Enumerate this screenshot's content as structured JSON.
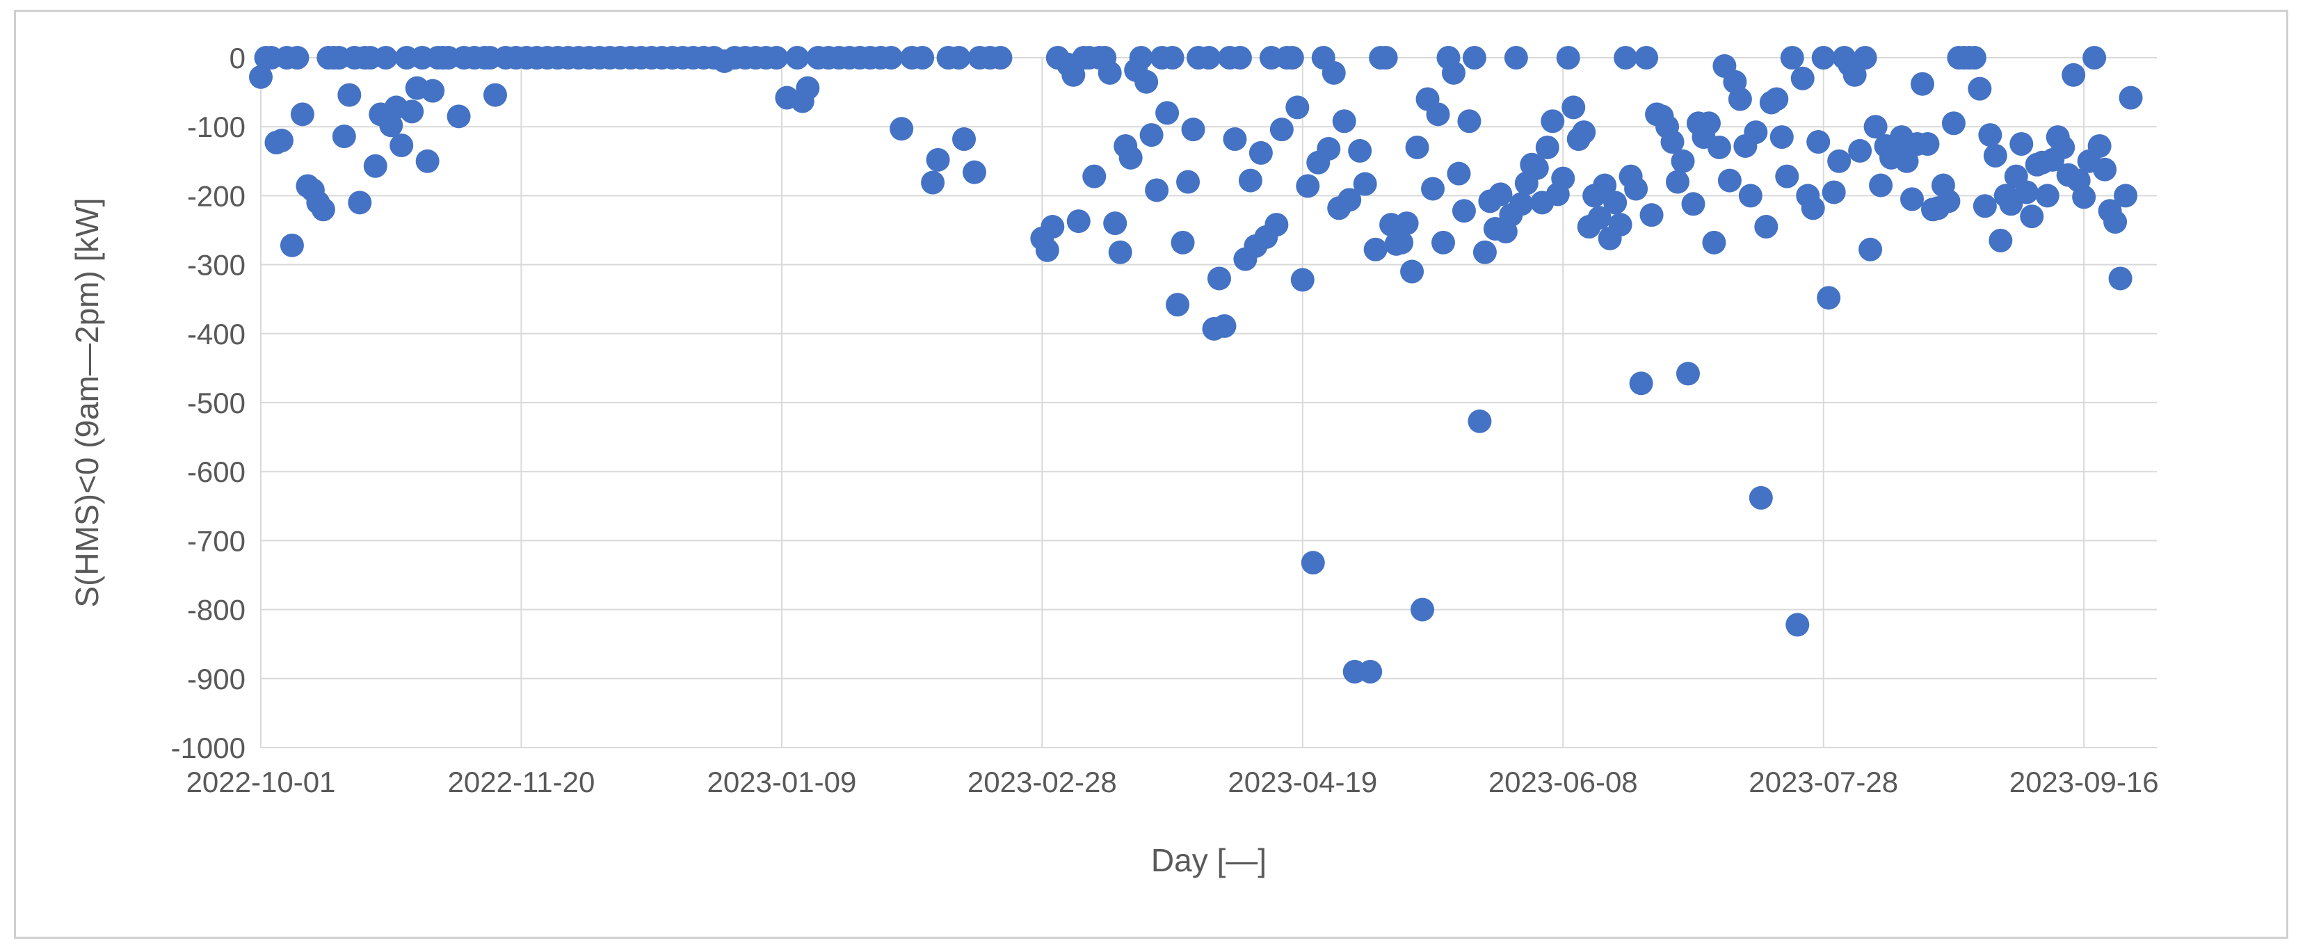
{
  "chart_data": {
    "type": "scatter",
    "title": "",
    "xlabel": "Day [—]",
    "ylabel": "S(HMS)<0 (9am—2pm) [kW]",
    "xlim": [
      "2022-10-01",
      "2023-09-30"
    ],
    "ylim": [
      -1000,
      0
    ],
    "y_ticks": [
      0,
      -100,
      -200,
      -300,
      -400,
      -500,
      -600,
      -700,
      -800,
      -900,
      -1000
    ],
    "x_ticks": [
      "2022-10-01",
      "2022-11-20",
      "2023-01-09",
      "2023-02-28",
      "2023-04-19",
      "2023-06-08",
      "2023-07-28",
      "2023-09-16"
    ],
    "grid": true,
    "legend": "none",
    "marker_color": "#4472C4",
    "points": [
      {
        "x": "2022-10-01",
        "y": -28
      },
      {
        "x": "2022-10-02",
        "y": 0
      },
      {
        "x": "2022-10-03",
        "y": 0
      },
      {
        "x": "2022-10-04",
        "y": -123
      },
      {
        "x": "2022-10-05",
        "y": -120
      },
      {
        "x": "2022-10-06",
        "y": 0
      },
      {
        "x": "2022-10-07",
        "y": -272
      },
      {
        "x": "2022-10-08",
        "y": 0
      },
      {
        "x": "2022-10-09",
        "y": -82
      },
      {
        "x": "2022-10-10",
        "y": -186
      },
      {
        "x": "2022-10-11",
        "y": -192
      },
      {
        "x": "2022-10-12",
        "y": -210
      },
      {
        "x": "2022-10-13",
        "y": -220
      },
      {
        "x": "2022-10-14",
        "y": 0
      },
      {
        "x": "2022-10-15",
        "y": 0
      },
      {
        "x": "2022-10-16",
        "y": 0
      },
      {
        "x": "2022-10-17",
        "y": -114
      },
      {
        "x": "2022-10-18",
        "y": -54
      },
      {
        "x": "2022-10-19",
        "y": 0
      },
      {
        "x": "2022-10-20",
        "y": -210
      },
      {
        "x": "2022-10-21",
        "y": 0
      },
      {
        "x": "2022-10-22",
        "y": 0
      },
      {
        "x": "2022-10-23",
        "y": -157
      },
      {
        "x": "2022-10-24",
        "y": -82
      },
      {
        "x": "2022-10-25",
        "y": 0
      },
      {
        "x": "2022-10-26",
        "y": -98
      },
      {
        "x": "2022-10-27",
        "y": -72
      },
      {
        "x": "2022-10-28",
        "y": -127
      },
      {
        "x": "2022-10-29",
        "y": 0
      },
      {
        "x": "2022-10-30",
        "y": -78
      },
      {
        "x": "2022-10-31",
        "y": -44
      },
      {
        "x": "2022-11-01",
        "y": 0
      },
      {
        "x": "2022-11-02",
        "y": -150
      },
      {
        "x": "2022-11-03",
        "y": -48
      },
      {
        "x": "2022-11-04",
        "y": 0
      },
      {
        "x": "2022-11-05",
        "y": 0
      },
      {
        "x": "2022-11-06",
        "y": 0
      },
      {
        "x": "2022-11-08",
        "y": -85
      },
      {
        "x": "2022-11-09",
        "y": 0
      },
      {
        "x": "2022-11-11",
        "y": 0
      },
      {
        "x": "2022-11-13",
        "y": 0
      },
      {
        "x": "2022-11-14",
        "y": 0
      },
      {
        "x": "2022-11-15",
        "y": -54
      },
      {
        "x": "2022-11-17",
        "y": 0
      },
      {
        "x": "2022-11-19",
        "y": 0
      },
      {
        "x": "2022-11-21",
        "y": 0
      },
      {
        "x": "2022-11-23",
        "y": 0
      },
      {
        "x": "2022-11-25",
        "y": 0
      },
      {
        "x": "2022-11-27",
        "y": 0
      },
      {
        "x": "2022-11-29",
        "y": 0
      },
      {
        "x": "2022-12-01",
        "y": 0
      },
      {
        "x": "2022-12-03",
        "y": 0
      },
      {
        "x": "2022-12-05",
        "y": 0
      },
      {
        "x": "2022-12-07",
        "y": 0
      },
      {
        "x": "2022-12-09",
        "y": 0
      },
      {
        "x": "2022-12-11",
        "y": 0
      },
      {
        "x": "2022-12-13",
        "y": 0
      },
      {
        "x": "2022-12-15",
        "y": 0
      },
      {
        "x": "2022-12-17",
        "y": 0
      },
      {
        "x": "2022-12-19",
        "y": 0
      },
      {
        "x": "2022-12-21",
        "y": 0
      },
      {
        "x": "2022-12-23",
        "y": 0
      },
      {
        "x": "2022-12-25",
        "y": 0
      },
      {
        "x": "2022-12-27",
        "y": 0
      },
      {
        "x": "2022-12-29",
        "y": -5
      },
      {
        "x": "2022-12-31",
        "y": 0
      },
      {
        "x": "2023-01-02",
        "y": 0
      },
      {
        "x": "2023-01-04",
        "y": 0
      },
      {
        "x": "2023-01-06",
        "y": 0
      },
      {
        "x": "2023-01-08",
        "y": 0
      },
      {
        "x": "2023-01-10",
        "y": -58
      },
      {
        "x": "2023-01-12",
        "y": 0
      },
      {
        "x": "2023-01-13",
        "y": -63
      },
      {
        "x": "2023-01-14",
        "y": -44
      },
      {
        "x": "2023-01-16",
        "y": 0
      },
      {
        "x": "2023-01-18",
        "y": 0
      },
      {
        "x": "2023-01-20",
        "y": 0
      },
      {
        "x": "2023-01-22",
        "y": 0
      },
      {
        "x": "2023-01-24",
        "y": 0
      },
      {
        "x": "2023-01-26",
        "y": 0
      },
      {
        "x": "2023-01-28",
        "y": 0
      },
      {
        "x": "2023-01-30",
        "y": 0
      },
      {
        "x": "2023-02-01",
        "y": -103
      },
      {
        "x": "2023-02-03",
        "y": 0
      },
      {
        "x": "2023-02-05",
        "y": 0
      },
      {
        "x": "2023-02-07",
        "y": -181
      },
      {
        "x": "2023-02-08",
        "y": -148
      },
      {
        "x": "2023-02-10",
        "y": 0
      },
      {
        "x": "2023-02-12",
        "y": 0
      },
      {
        "x": "2023-02-13",
        "y": -118
      },
      {
        "x": "2023-02-15",
        "y": -166
      },
      {
        "x": "2023-02-16",
        "y": 0
      },
      {
        "x": "2023-02-18",
        "y": 0
      },
      {
        "x": "2023-02-20",
        "y": 0
      },
      {
        "x": "2023-02-28",
        "y": -262
      },
      {
        "x": "2023-03-01",
        "y": -279
      },
      {
        "x": "2023-03-02",
        "y": -245
      },
      {
        "x": "2023-03-03",
        "y": 0
      },
      {
        "x": "2023-03-05",
        "y": -10
      },
      {
        "x": "2023-03-06",
        "y": -25
      },
      {
        "x": "2023-03-07",
        "y": -237
      },
      {
        "x": "2023-03-08",
        "y": 0
      },
      {
        "x": "2023-03-09",
        "y": 0
      },
      {
        "x": "2023-03-10",
        "y": -172
      },
      {
        "x": "2023-03-11",
        "y": 0
      },
      {
        "x": "2023-03-12",
        "y": 0
      },
      {
        "x": "2023-03-13",
        "y": -22
      },
      {
        "x": "2023-03-14",
        "y": -240
      },
      {
        "x": "2023-03-15",
        "y": -282
      },
      {
        "x": "2023-03-16",
        "y": -128
      },
      {
        "x": "2023-03-17",
        "y": -145
      },
      {
        "x": "2023-03-18",
        "y": -18
      },
      {
        "x": "2023-03-19",
        "y": 0
      },
      {
        "x": "2023-03-20",
        "y": -35
      },
      {
        "x": "2023-03-21",
        "y": -112
      },
      {
        "x": "2023-03-22",
        "y": -192
      },
      {
        "x": "2023-03-23",
        "y": 0
      },
      {
        "x": "2023-03-24",
        "y": -80
      },
      {
        "x": "2023-03-25",
        "y": 0
      },
      {
        "x": "2023-03-26",
        "y": -358
      },
      {
        "x": "2023-03-27",
        "y": -268
      },
      {
        "x": "2023-03-28",
        "y": -180
      },
      {
        "x": "2023-03-29",
        "y": -104
      },
      {
        "x": "2023-03-30",
        "y": 0
      },
      {
        "x": "2023-04-01",
        "y": 0
      },
      {
        "x": "2023-04-02",
        "y": -393
      },
      {
        "x": "2023-04-03",
        "y": -320
      },
      {
        "x": "2023-04-04",
        "y": -389
      },
      {
        "x": "2023-04-05",
        "y": 0
      },
      {
        "x": "2023-04-06",
        "y": -118
      },
      {
        "x": "2023-04-07",
        "y": 0
      },
      {
        "x": "2023-04-08",
        "y": -292
      },
      {
        "x": "2023-04-09",
        "y": -178
      },
      {
        "x": "2023-04-10",
        "y": -273
      },
      {
        "x": "2023-04-11",
        "y": -138
      },
      {
        "x": "2023-04-12",
        "y": -260
      },
      {
        "x": "2023-04-13",
        "y": 0
      },
      {
        "x": "2023-04-14",
        "y": -242
      },
      {
        "x": "2023-04-15",
        "y": -104
      },
      {
        "x": "2023-04-16",
        "y": 0
      },
      {
        "x": "2023-04-17",
        "y": 0
      },
      {
        "x": "2023-04-18",
        "y": -72
      },
      {
        "x": "2023-04-19",
        "y": -322
      },
      {
        "x": "2023-04-20",
        "y": -186
      },
      {
        "x": "2023-04-21",
        "y": -732
      },
      {
        "x": "2023-04-22",
        "y": -152
      },
      {
        "x": "2023-04-23",
        "y": 0
      },
      {
        "x": "2023-04-24",
        "y": -132
      },
      {
        "x": "2023-04-25",
        "y": -22
      },
      {
        "x": "2023-04-26",
        "y": -218
      },
      {
        "x": "2023-04-27",
        "y": -92
      },
      {
        "x": "2023-04-28",
        "y": -206
      },
      {
        "x": "2023-04-29",
        "y": -890
      },
      {
        "x": "2023-04-30",
        "y": -135
      },
      {
        "x": "2023-05-01",
        "y": -183
      },
      {
        "x": "2023-05-02",
        "y": -890
      },
      {
        "x": "2023-05-03",
        "y": -278
      },
      {
        "x": "2023-05-04",
        "y": 0
      },
      {
        "x": "2023-05-05",
        "y": 0
      },
      {
        "x": "2023-05-06",
        "y": -242
      },
      {
        "x": "2023-05-07",
        "y": -270
      },
      {
        "x": "2023-05-08",
        "y": -268
      },
      {
        "x": "2023-05-09",
        "y": -240
      },
      {
        "x": "2023-05-10",
        "y": -310
      },
      {
        "x": "2023-05-11",
        "y": -130
      },
      {
        "x": "2023-05-12",
        "y": -800
      },
      {
        "x": "2023-05-13",
        "y": -60
      },
      {
        "x": "2023-05-14",
        "y": -190
      },
      {
        "x": "2023-05-15",
        "y": -82
      },
      {
        "x": "2023-05-16",
        "y": -268
      },
      {
        "x": "2023-05-17",
        "y": 0
      },
      {
        "x": "2023-05-18",
        "y": -22
      },
      {
        "x": "2023-05-19",
        "y": -168
      },
      {
        "x": "2023-05-20",
        "y": -222
      },
      {
        "x": "2023-05-21",
        "y": -92
      },
      {
        "x": "2023-05-22",
        "y": 0
      },
      {
        "x": "2023-05-23",
        "y": -527
      },
      {
        "x": "2023-05-24",
        "y": -282
      },
      {
        "x": "2023-05-25",
        "y": -208
      },
      {
        "x": "2023-05-26",
        "y": -248
      },
      {
        "x": "2023-05-27",
        "y": -198
      },
      {
        "x": "2023-05-28",
        "y": -252
      },
      {
        "x": "2023-05-29",
        "y": -228
      },
      {
        "x": "2023-05-30",
        "y": 0
      },
      {
        "x": "2023-05-31",
        "y": -212
      },
      {
        "x": "2023-06-01",
        "y": -182
      },
      {
        "x": "2023-06-02",
        "y": -155
      },
      {
        "x": "2023-06-03",
        "y": -160
      },
      {
        "x": "2023-06-04",
        "y": -210
      },
      {
        "x": "2023-06-05",
        "y": -130
      },
      {
        "x": "2023-06-06",
        "y": -92
      },
      {
        "x": "2023-06-07",
        "y": -198
      },
      {
        "x": "2023-06-08",
        "y": -175
      },
      {
        "x": "2023-06-09",
        "y": 0
      },
      {
        "x": "2023-06-10",
        "y": -72
      },
      {
        "x": "2023-06-11",
        "y": -118
      },
      {
        "x": "2023-06-12",
        "y": -108
      },
      {
        "x": "2023-06-13",
        "y": -245
      },
      {
        "x": "2023-06-14",
        "y": -200
      },
      {
        "x": "2023-06-15",
        "y": -232
      },
      {
        "x": "2023-06-16",
        "y": -185
      },
      {
        "x": "2023-06-17",
        "y": -262
      },
      {
        "x": "2023-06-18",
        "y": -210
      },
      {
        "x": "2023-06-19",
        "y": -242
      },
      {
        "x": "2023-06-20",
        "y": 0
      },
      {
        "x": "2023-06-21",
        "y": -172
      },
      {
        "x": "2023-06-22",
        "y": -190
      },
      {
        "x": "2023-06-23",
        "y": -472
      },
      {
        "x": "2023-06-24",
        "y": 0
      },
      {
        "x": "2023-06-25",
        "y": -228
      },
      {
        "x": "2023-06-26",
        "y": -82
      },
      {
        "x": "2023-06-27",
        "y": -85
      },
      {
        "x": "2023-06-28",
        "y": -100
      },
      {
        "x": "2023-06-29",
        "y": -122
      },
      {
        "x": "2023-06-30",
        "y": -180
      },
      {
        "x": "2023-07-01",
        "y": -150
      },
      {
        "x": "2023-07-02",
        "y": -458
      },
      {
        "x": "2023-07-03",
        "y": -212
      },
      {
        "x": "2023-07-04",
        "y": -95
      },
      {
        "x": "2023-07-05",
        "y": -115
      },
      {
        "x": "2023-07-06",
        "y": -95
      },
      {
        "x": "2023-07-07",
        "y": -268
      },
      {
        "x": "2023-07-08",
        "y": -130
      },
      {
        "x": "2023-07-09",
        "y": -12
      },
      {
        "x": "2023-07-10",
        "y": -178
      },
      {
        "x": "2023-07-11",
        "y": -35
      },
      {
        "x": "2023-07-12",
        "y": -60
      },
      {
        "x": "2023-07-13",
        "y": -128
      },
      {
        "x": "2023-07-14",
        "y": -200
      },
      {
        "x": "2023-07-15",
        "y": -108
      },
      {
        "x": "2023-07-16",
        "y": -638
      },
      {
        "x": "2023-07-17",
        "y": -245
      },
      {
        "x": "2023-07-18",
        "y": -65
      },
      {
        "x": "2023-07-19",
        "y": -60
      },
      {
        "x": "2023-07-20",
        "y": -115
      },
      {
        "x": "2023-07-21",
        "y": -172
      },
      {
        "x": "2023-07-22",
        "y": 0
      },
      {
        "x": "2023-07-23",
        "y": -822
      },
      {
        "x": "2023-07-24",
        "y": -30
      },
      {
        "x": "2023-07-25",
        "y": -200
      },
      {
        "x": "2023-07-26",
        "y": -218
      },
      {
        "x": "2023-07-27",
        "y": -122
      },
      {
        "x": "2023-07-28",
        "y": 0
      },
      {
        "x": "2023-07-29",
        "y": -348
      },
      {
        "x": "2023-07-30",
        "y": -195
      },
      {
        "x": "2023-07-31",
        "y": -150
      },
      {
        "x": "2023-08-01",
        "y": 0
      },
      {
        "x": "2023-08-02",
        "y": -10
      },
      {
        "x": "2023-08-03",
        "y": -25
      },
      {
        "x": "2023-08-04",
        "y": -135
      },
      {
        "x": "2023-08-05",
        "y": 0
      },
      {
        "x": "2023-08-06",
        "y": -278
      },
      {
        "x": "2023-08-07",
        "y": -100
      },
      {
        "x": "2023-08-08",
        "y": -185
      },
      {
        "x": "2023-08-09",
        "y": -128
      },
      {
        "x": "2023-08-10",
        "y": -145
      },
      {
        "x": "2023-08-11",
        "y": -140
      },
      {
        "x": "2023-08-12",
        "y": -115
      },
      {
        "x": "2023-08-13",
        "y": -150
      },
      {
        "x": "2023-08-14",
        "y": -205
      },
      {
        "x": "2023-08-15",
        "y": -125
      },
      {
        "x": "2023-08-16",
        "y": -38
      },
      {
        "x": "2023-08-17",
        "y": -125
      },
      {
        "x": "2023-08-18",
        "y": -220
      },
      {
        "x": "2023-08-19",
        "y": -218
      },
      {
        "x": "2023-08-20",
        "y": -185
      },
      {
        "x": "2023-08-21",
        "y": -208
      },
      {
        "x": "2023-08-22",
        "y": -95
      },
      {
        "x": "2023-08-23",
        "y": 0
      },
      {
        "x": "2023-08-24",
        "y": 0
      },
      {
        "x": "2023-08-25",
        "y": 0
      },
      {
        "x": "2023-08-26",
        "y": 0
      },
      {
        "x": "2023-08-27",
        "y": -45
      },
      {
        "x": "2023-08-28",
        "y": -215
      },
      {
        "x": "2023-08-29",
        "y": -112
      },
      {
        "x": "2023-08-30",
        "y": -142
      },
      {
        "x": "2023-08-31",
        "y": -265
      },
      {
        "x": "2023-09-01",
        "y": -200
      },
      {
        "x": "2023-09-02",
        "y": -212
      },
      {
        "x": "2023-09-03",
        "y": -172
      },
      {
        "x": "2023-09-04",
        "y": -125
      },
      {
        "x": "2023-09-05",
        "y": -195
      },
      {
        "x": "2023-09-06",
        "y": -230
      },
      {
        "x": "2023-09-07",
        "y": -155
      },
      {
        "x": "2023-09-08",
        "y": -152
      },
      {
        "x": "2023-09-09",
        "y": -200
      },
      {
        "x": "2023-09-10",
        "y": -148
      },
      {
        "x": "2023-09-11",
        "y": -115
      },
      {
        "x": "2023-09-12",
        "y": -130
      },
      {
        "x": "2023-09-13",
        "y": -170
      },
      {
        "x": "2023-09-14",
        "y": -25
      },
      {
        "x": "2023-09-15",
        "y": -178
      },
      {
        "x": "2023-09-16",
        "y": -202
      },
      {
        "x": "2023-09-17",
        "y": -150
      },
      {
        "x": "2023-09-18",
        "y": 0
      },
      {
        "x": "2023-09-19",
        "y": -128
      },
      {
        "x": "2023-09-20",
        "y": -162
      },
      {
        "x": "2023-09-21",
        "y": -222
      },
      {
        "x": "2023-09-22",
        "y": -238
      },
      {
        "x": "2023-09-23",
        "y": -320
      },
      {
        "x": "2023-09-24",
        "y": -200
      },
      {
        "x": "2023-09-25",
        "y": -58
      }
    ]
  }
}
